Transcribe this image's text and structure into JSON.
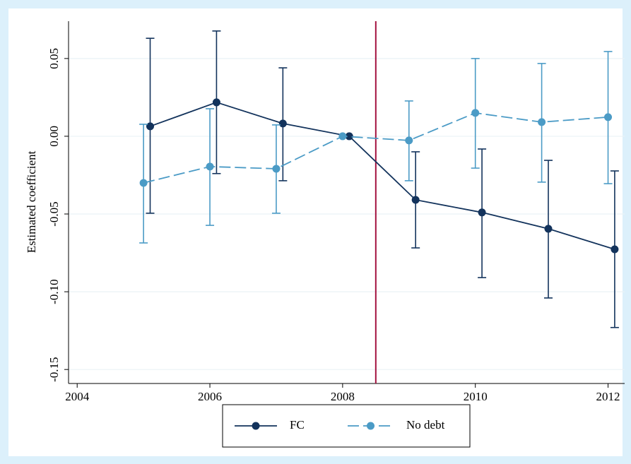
{
  "chart_data": {
    "type": "line",
    "y_label": "Estimated coefficient",
    "xlim": [
      2003.87,
      2012.25
    ],
    "xticks": [
      2004,
      2006,
      2008,
      2010,
      2012
    ],
    "ylim": [
      -0.159,
      0.074
    ],
    "yticks": [
      0.05,
      {
        "value": 0,
        "label": "0.00"
      },
      -0.05,
      {
        "value": -0.1,
        "label": "-0.10"
      },
      -0.15
    ],
    "grid": true,
    "vline": 2008.5,
    "vline_color": "#a3123f",
    "legend": "bottom",
    "series": [
      {
        "name": "FC",
        "color": "#13335c",
        "dash": "solid",
        "x": [
          2005.1,
          2006.1,
          2007.1,
          2008.1,
          2009.1,
          2010.1,
          2011.1,
          2012.1
        ],
        "values": [
          0.0064,
          0.0218,
          0.0082,
          0,
          -0.0409,
          -0.049,
          -0.0595,
          -0.0727
        ],
        "ci_low": [
          -0.0495,
          -0.024,
          -0.0286,
          null,
          -0.0718,
          -0.0909,
          -0.104,
          -0.123
        ],
        "ci_high": [
          0.063,
          0.0677,
          0.044,
          null,
          -0.01,
          -0.0082,
          -0.0155,
          -0.0223
        ]
      },
      {
        "name": "No debt",
        "color": "#4b9bc6",
        "dash": "dashed",
        "x": [
          2005,
          2006,
          2007,
          2008,
          2009,
          2010,
          2011,
          2012
        ],
        "values": [
          -0.03,
          -0.0195,
          -0.0209,
          0,
          -0.0027,
          0.015,
          0.0091,
          0.0123
        ],
        "ci_low": [
          -0.0686,
          -0.0573,
          -0.0495,
          null,
          -0.0286,
          -0.0205,
          -0.0295,
          -0.0305
        ],
        "ci_high": [
          0.0077,
          0.0177,
          0.0073,
          null,
          0.0227,
          0.05,
          0.0468,
          0.0545
        ]
      }
    ]
  }
}
